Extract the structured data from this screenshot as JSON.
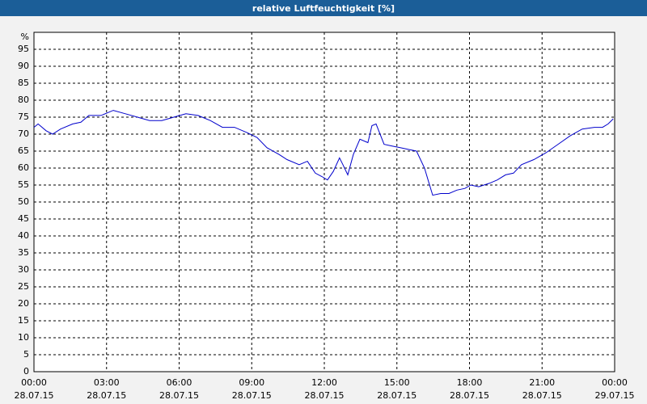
{
  "chart_data": {
    "type": "line",
    "title": "relative Luftfeuchtigkeit [%]",
    "y_unit": "%",
    "x": [
      0,
      0.17,
      0.5,
      0.77,
      1.1,
      1.6,
      1.94,
      2.27,
      2.77,
      3.28,
      3.78,
      4.28,
      4.78,
      5.28,
      5.78,
      6.28,
      6.78,
      7.29,
      7.79,
      8.29,
      8.79,
      9.22,
      9.63,
      10.13,
      10.46,
      10.96,
      11.3,
      11.63,
      11.9,
      12.13,
      12.37,
      12.63,
      12.77,
      12.97,
      13.2,
      13.47,
      13.8,
      13.97,
      14.14,
      14.47,
      14.8,
      15.14,
      15.47,
      15.81,
      16.14,
      16.31,
      16.48,
      16.81,
      17.15,
      17.48,
      17.81,
      18.05,
      18.38,
      18.82,
      19.15,
      19.49,
      19.82,
      20.15,
      20.66,
      21.16,
      21.66,
      22.16,
      22.66,
      23.16,
      23.5,
      23.73,
      23.94
    ],
    "series": [
      {
        "name": "relative Luftfeuchtigkeit",
        "color": "#0000cc",
        "values": [
          72,
          73,
          71,
          70,
          71.5,
          73,
          73.5,
          75.5,
          75.5,
          77,
          76,
          75,
          74,
          74,
          75,
          76,
          75.5,
          74,
          72,
          72,
          70.5,
          69,
          66,
          64,
          62.5,
          61,
          62,
          58.5,
          57.5,
          56.5,
          59,
          63,
          61,
          58,
          64,
          68.5,
          67.5,
          72.5,
          73,
          67,
          66.5,
          66,
          65.5,
          65,
          60,
          56,
          52,
          52.5,
          52.5,
          53.5,
          54,
          55,
          54.5,
          55.5,
          56.5,
          58,
          58.5,
          61,
          62.5,
          64.5,
          67,
          69.5,
          71.5,
          72,
          72,
          73,
          74.5
        ]
      }
    ],
    "xlim": [
      0,
      24
    ],
    "ylim": [
      0,
      100
    ],
    "xticks": [
      {
        "value": 0,
        "label": "00:00 28.07.15"
      },
      {
        "value": 3,
        "label": "03:00 28.07.15"
      },
      {
        "value": 6,
        "label": "06:00 28.07.15"
      },
      {
        "value": 9,
        "label": "09:00 28.07.15"
      },
      {
        "value": 12,
        "label": "12:00 28.07.15"
      },
      {
        "value": 15,
        "label": "15:00 28.07.15"
      },
      {
        "value": 18,
        "label": "18:00 28.07.15"
      },
      {
        "value": 21,
        "label": "21:00 28.07.15"
      },
      {
        "value": 24,
        "label": "00:00 29.07.15"
      }
    ],
    "yticks": [
      0,
      5,
      10,
      15,
      20,
      25,
      30,
      35,
      40,
      45,
      50,
      55,
      60,
      65,
      70,
      75,
      80,
      85,
      90,
      95
    ],
    "grid": true
  }
}
